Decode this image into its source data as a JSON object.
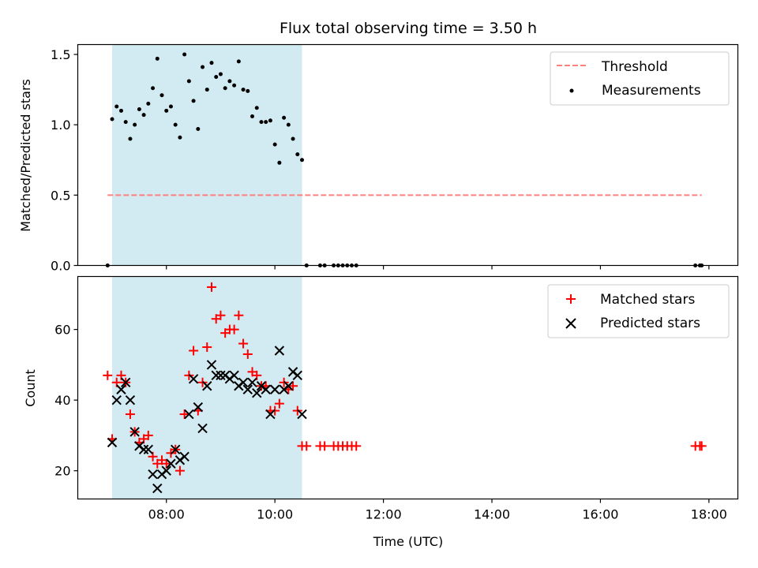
{
  "chart_data": [
    {
      "type": "scatter",
      "title": "Flux total observing time = 3.50 h",
      "xlabel": "",
      "ylabel": "Matched/Predicted stars",
      "xlim": [
        "06:22",
        "18:32"
      ],
      "ylim": [
        0,
        1.57
      ],
      "y_ticks": [
        0.0,
        0.5,
        1.0,
        1.5
      ],
      "y_tick_labels": [
        "0.0",
        "0.5",
        "1.0",
        "1.5"
      ],
      "grid": false,
      "legend_position": "top-right",
      "shaded_interval": {
        "start": "07:00",
        "end": "10:30",
        "color": "#add8e6"
      },
      "threshold": {
        "name": "Threshold",
        "value": 0.5,
        "x_start": "06:55",
        "x_end": "17:52",
        "style": "dashed",
        "color": "#ff7f7f"
      },
      "series": [
        {
          "name": "Measurements",
          "color": "#000000",
          "points": [
            [
              "06:55",
              0.0
            ],
            [
              "07:00",
              1.04
            ],
            [
              "07:05",
              1.13
            ],
            [
              "07:10",
              1.1
            ],
            [
              "07:15",
              1.02
            ],
            [
              "07:20",
              0.9
            ],
            [
              "07:25",
              1.0
            ],
            [
              "07:30",
              1.11
            ],
            [
              "07:35",
              1.07
            ],
            [
              "07:40",
              1.15
            ],
            [
              "07:45",
              1.26
            ],
            [
              "07:50",
              1.47
            ],
            [
              "07:55",
              1.21
            ],
            [
              "08:00",
              1.1
            ],
            [
              "08:05",
              1.13
            ],
            [
              "08:10",
              1.0
            ],
            [
              "08:15",
              0.91
            ],
            [
              "08:20",
              1.5
            ],
            [
              "08:25",
              1.31
            ],
            [
              "08:30",
              1.17
            ],
            [
              "08:35",
              0.97
            ],
            [
              "08:40",
              1.41
            ],
            [
              "08:45",
              1.25
            ],
            [
              "08:50",
              1.44
            ],
            [
              "08:55",
              1.34
            ],
            [
              "09:00",
              1.36
            ],
            [
              "09:05",
              1.26
            ],
            [
              "09:10",
              1.31
            ],
            [
              "09:15",
              1.28
            ],
            [
              "09:20",
              1.45
            ],
            [
              "09:25",
              1.25
            ],
            [
              "09:30",
              1.24
            ],
            [
              "09:35",
              1.06
            ],
            [
              "09:40",
              1.12
            ],
            [
              "09:45",
              1.02
            ],
            [
              "09:50",
              1.02
            ],
            [
              "09:55",
              1.03
            ],
            [
              "10:00",
              0.86
            ],
            [
              "10:05",
              0.73
            ],
            [
              "10:10",
              1.05
            ],
            [
              "10:15",
              1.0
            ],
            [
              "10:20",
              0.9
            ],
            [
              "10:25",
              0.79
            ],
            [
              "10:30",
              0.75
            ],
            [
              "10:35",
              0.0
            ],
            [
              "10:50",
              0.0
            ],
            [
              "10:55",
              0.0
            ],
            [
              "11:05",
              0.0
            ],
            [
              "11:10",
              0.0
            ],
            [
              "11:15",
              0.0
            ],
            [
              "11:20",
              0.0
            ],
            [
              "11:25",
              0.0
            ],
            [
              "11:30",
              0.0
            ],
            [
              "17:45",
              0.0
            ],
            [
              "17:50",
              0.0
            ],
            [
              "17:52",
              0.0
            ]
          ]
        }
      ]
    },
    {
      "type": "scatter",
      "title": "",
      "xlabel": "Time (UTC)",
      "ylabel": "Count",
      "xlim": [
        "06:22",
        "18:32"
      ],
      "ylim": [
        12,
        75
      ],
      "x_ticks": [
        "08:00",
        "10:00",
        "12:00",
        "14:00",
        "16:00",
        "18:00"
      ],
      "y_ticks": [
        20,
        40,
        60
      ],
      "grid": false,
      "legend_position": "top-right",
      "shaded_interval": {
        "start": "07:00",
        "end": "10:30",
        "color": "#add8e6"
      },
      "series": [
        {
          "name": "Matched stars",
          "marker": "+",
          "color": "#ff0000",
          "points": [
            [
              "06:55",
              47
            ],
            [
              "07:00",
              29
            ],
            [
              "07:05",
              45
            ],
            [
              "07:10",
              47
            ],
            [
              "07:15",
              45
            ],
            [
              "07:20",
              36
            ],
            [
              "07:25",
              31
            ],
            [
              "07:30",
              28
            ],
            [
              "07:35",
              29
            ],
            [
              "07:40",
              30
            ],
            [
              "07:45",
              24
            ],
            [
              "07:50",
              22
            ],
            [
              "07:55",
              23
            ],
            [
              "08:00",
              22
            ],
            [
              "08:05",
              25
            ],
            [
              "08:10",
              26
            ],
            [
              "08:15",
              20
            ],
            [
              "08:20",
              36
            ],
            [
              "08:25",
              47
            ],
            [
              "08:30",
              54
            ],
            [
              "08:35",
              37
            ],
            [
              "08:40",
              45
            ],
            [
              "08:45",
              55
            ],
            [
              "08:50",
              72
            ],
            [
              "08:55",
              63
            ],
            [
              "09:00",
              64
            ],
            [
              "09:05",
              59
            ],
            [
              "09:10",
              60
            ],
            [
              "09:15",
              60
            ],
            [
              "09:20",
              64
            ],
            [
              "09:25",
              56
            ],
            [
              "09:30",
              53
            ],
            [
              "09:35",
              48
            ],
            [
              "09:40",
              47
            ],
            [
              "09:45",
              44
            ],
            [
              "09:50",
              44
            ],
            [
              "09:55",
              37
            ],
            [
              "10:00",
              37
            ],
            [
              "10:05",
              39
            ],
            [
              "10:10",
              45
            ],
            [
              "10:15",
              43
            ],
            [
              "10:20",
              44
            ],
            [
              "10:25",
              37
            ],
            [
              "10:30",
              27
            ],
            [
              "10:35",
              27
            ],
            [
              "10:50",
              27
            ],
            [
              "10:55",
              27
            ],
            [
              "11:05",
              27
            ],
            [
              "11:10",
              27
            ],
            [
              "11:15",
              27
            ],
            [
              "11:20",
              27
            ],
            [
              "11:25",
              27
            ],
            [
              "11:30",
              27
            ],
            [
              "17:45",
              27
            ],
            [
              "17:50",
              27
            ],
            [
              "17:52",
              27
            ]
          ]
        },
        {
          "name": "Predicted stars",
          "marker": "x",
          "color": "#000000",
          "points": [
            [
              "07:00",
              28
            ],
            [
              "07:05",
              40
            ],
            [
              "07:10",
              43
            ],
            [
              "07:15",
              45
            ],
            [
              "07:20",
              40
            ],
            [
              "07:25",
              31
            ],
            [
              "07:30",
              27
            ],
            [
              "07:35",
              26
            ],
            [
              "07:40",
              26
            ],
            [
              "07:45",
              19
            ],
            [
              "07:50",
              15
            ],
            [
              "07:55",
              19
            ],
            [
              "08:00",
              20
            ],
            [
              "08:05",
              22
            ],
            [
              "08:10",
              26
            ],
            [
              "08:15",
              23
            ],
            [
              "08:20",
              24
            ],
            [
              "08:25",
              36
            ],
            [
              "08:30",
              46
            ],
            [
              "08:35",
              38
            ],
            [
              "08:40",
              32
            ],
            [
              "08:45",
              44
            ],
            [
              "08:50",
              50
            ],
            [
              "08:55",
              47
            ],
            [
              "09:00",
              47
            ],
            [
              "09:05",
              47
            ],
            [
              "09:10",
              46
            ],
            [
              "09:15",
              47
            ],
            [
              "09:20",
              44
            ],
            [
              "09:25",
              45
            ],
            [
              "09:30",
              43
            ],
            [
              "09:35",
              45
            ],
            [
              "09:40",
              42
            ],
            [
              "09:45",
              44
            ],
            [
              "09:50",
              43
            ],
            [
              "09:55",
              36
            ],
            [
              "10:00",
              43
            ],
            [
              "10:05",
              54
            ],
            [
              "10:10",
              43
            ],
            [
              "10:15",
              44
            ],
            [
              "10:20",
              48
            ],
            [
              "10:25",
              47
            ],
            [
              "10:30",
              36
            ]
          ]
        }
      ]
    }
  ]
}
